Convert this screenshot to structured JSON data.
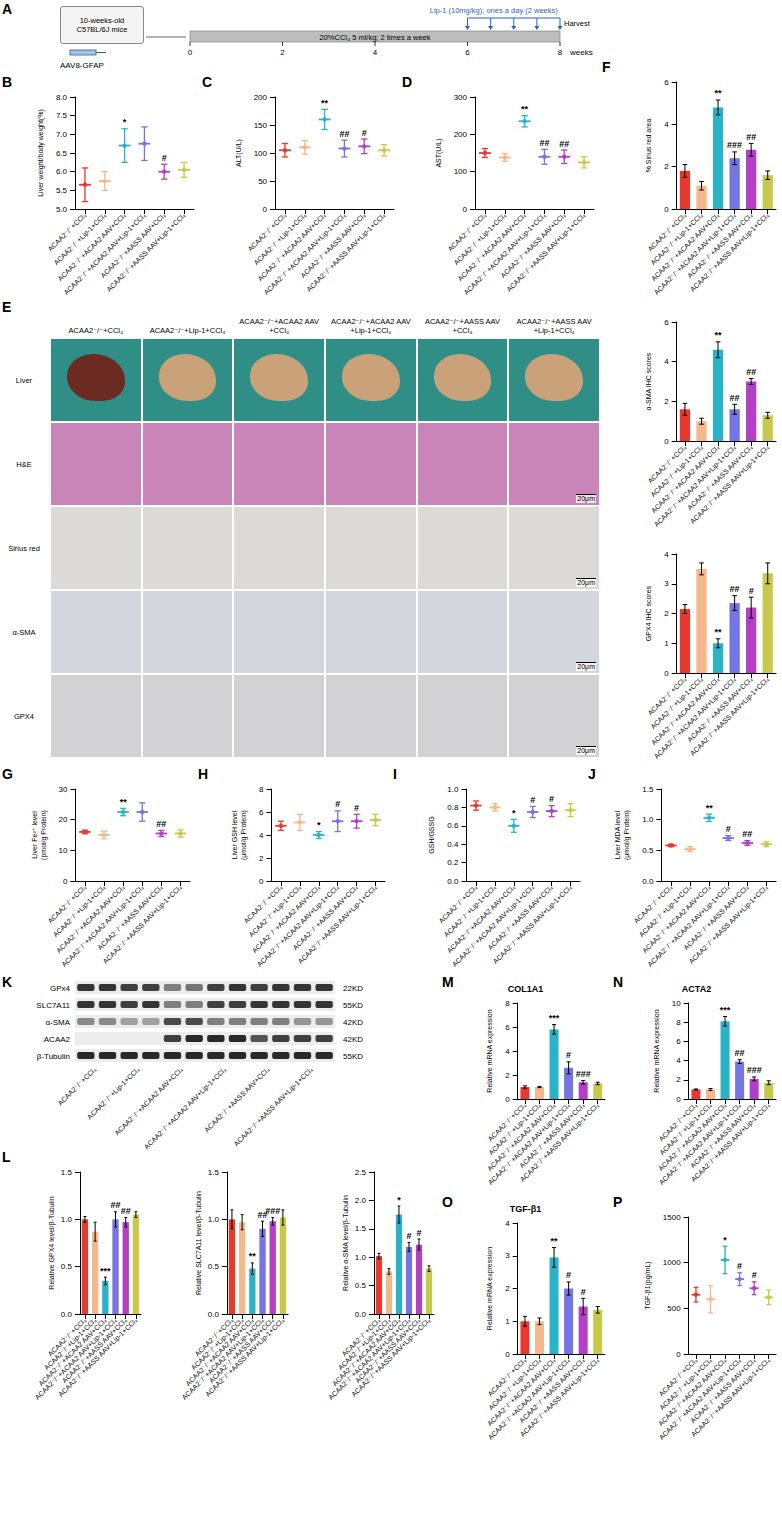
{
  "chart_data": [
    {
      "panel": "B",
      "type": "dotplot",
      "y_label": "Liver weight/body weight(%)",
      "categories": [
        "ACAA2⁻/⁻+CCl₄",
        "ACAA2⁻/⁻+Lip-1+CCl₄",
        "ACAA2⁻/⁻+ACAA2 AAV+CCl₄",
        "ACAA2⁻/⁻+ACAA2 AAV+Lip-1+CCl₄",
        "ACAA2⁻/⁻+AASS AAV+CCl₄",
        "ACAA2⁻/⁻+AASS AAV+Lip-1+CCl₄"
      ],
      "colors": [
        "#e8392f",
        "#f5b88a",
        "#2ab3c6",
        "#7474e2",
        "#b23fc5",
        "#c8c84a"
      ],
      "values": [
        5.65,
        5.75,
        6.7,
        6.75,
        6.0,
        6.05
      ],
      "errors": [
        0.45,
        0.25,
        0.45,
        0.45,
        0.2,
        0.2
      ],
      "annotations": [
        null,
        null,
        "*",
        null,
        "#",
        null
      ],
      "ylim": [
        5,
        8
      ],
      "yticks": [
        {
          "value": 5,
          "label": "5.0"
        },
        5.5,
        {
          "value": 6,
          "label": "6.0"
        },
        6.5,
        {
          "value": 7,
          "label": "7.0"
        },
        7.5,
        {
          "value": 8,
          "label": "8.0"
        }
      ]
    },
    {
      "panel": "C",
      "type": "dotplot",
      "y_label": "ALT(U/L)",
      "categories": [
        "ACAA2⁻/⁻+CCl₄",
        "ACAA2⁻/⁻+Lip-1+CCl₄",
        "ACAA2⁻/⁻+ACAA2 AAV+CCl₄",
        "ACAA2⁻/⁻+ACAA2 AAV+Lip-1+CCl₄",
        "ACAA2⁻/⁻+AASS AAV+CCl₄",
        "ACAA2⁻/⁻+AASS AAV+Lip-1+CCl₄"
      ],
      "colors": [
        "#e8392f",
        "#f5b88a",
        "#2ab3c6",
        "#7474e2",
        "#b23fc5",
        "#c8c84a"
      ],
      "values": [
        105,
        110,
        160,
        108,
        112,
        105
      ],
      "errors": [
        12,
        12,
        18,
        15,
        13,
        10
      ],
      "annotations": [
        null,
        null,
        "**",
        "##",
        "#",
        null
      ],
      "ylim": [
        0,
        200
      ],
      "yticks": [
        0,
        50,
        100,
        150,
        200
      ]
    },
    {
      "panel": "D",
      "type": "dotplot",
      "y_label": "AST(U/L)",
      "categories": [
        "ACAA2⁻/⁻+CCl₄",
        "ACAA2⁻/⁻+Lip-1+CCl₄",
        "ACAA2⁻/⁻+ACAA2 AAV+CCl₄",
        "ACAA2⁻/⁻+ACAA2 AAV+Lip-1+CCl₄",
        "ACAA2⁻/⁻+AASS AAV+CCl₄",
        "ACAA2⁻/⁻+AASS AAV+Lip-1+CCl₄"
      ],
      "colors": [
        "#e8392f",
        "#f5b88a",
        "#2ab3c6",
        "#7474e2",
        "#b23fc5",
        "#c8c84a"
      ],
      "values": [
        150,
        138,
        235,
        140,
        140,
        125
      ],
      "errors": [
        12,
        10,
        15,
        20,
        18,
        15
      ],
      "annotations": [
        null,
        null,
        "**",
        "##",
        "##",
        null
      ],
      "ylim": [
        0,
        300
      ],
      "yticks": [
        0,
        100,
        200,
        300
      ]
    },
    {
      "panel": "F",
      "type": "bar",
      "y_label": "% Sirius red area",
      "categories": [
        "ACAA2⁻/⁻+CCl₄",
        "ACAA2⁻/⁻+Lip-1+CCl₄",
        "ACAA2⁻/⁻+ACAA2 AAV+CCl₄",
        "ACAA2⁻/⁻+ACAA2 AAV+Lip-1+CCl₄",
        "ACAA2⁻/⁻+AASS AAV+CCl₄",
        "ACAA2⁻/⁻+AASS AAV+Lip-1+CCl₄"
      ],
      "colors": [
        "#e8392f",
        "#f5b88a",
        "#2ab3c6",
        "#7474e2",
        "#b23fc5",
        "#c8c84a"
      ],
      "values": [
        1.8,
        1.1,
        4.8,
        2.4,
        2.8,
        1.6
      ],
      "errors": [
        0.3,
        0.2,
        0.35,
        0.3,
        0.3,
        0.2
      ],
      "annotations": [
        null,
        null,
        "**",
        "###",
        "##",
        null
      ],
      "ylim": [
        0,
        6
      ],
      "yticks": [
        0,
        2,
        4,
        6
      ]
    },
    {
      "type": "bar",
      "y_label": "α-SMA IHC scores",
      "categories": [
        "ACAA2⁻/⁻+CCl₄",
        "ACAA2⁻/⁻+Lip-1+CCl₄",
        "ACAA2⁻/⁻+ACAA2 AAV+CCl₄",
        "ACAA2⁻/⁻+ACAA2 AAV+Lip-1+CCl₄",
        "ACAA2⁻/⁻+AASS AAV+CCl₄",
        "ACAA2⁻/⁻+AASS AAV+Lip-1+CCl₄"
      ],
      "colors": [
        "#e8392f",
        "#f5b88a",
        "#2ab3c6",
        "#7474e2",
        "#b23fc5",
        "#c8c84a"
      ],
      "values": [
        1.6,
        1.0,
        4.6,
        1.6,
        3.0,
        1.3
      ],
      "errors": [
        0.3,
        0.15,
        0.4,
        0.25,
        0.15,
        0.15
      ],
      "annotations": [
        null,
        null,
        "**",
        "##",
        "##",
        null
      ],
      "ylim": [
        0,
        6
      ],
      "yticks": [
        0,
        2,
        4,
        6
      ]
    },
    {
      "type": "bar",
      "y_label": "GPX4 IHC scores",
      "categories": [
        "ACAA2⁻/⁻+CCl₄",
        "ACAA2⁻/⁻+Lip-1+CCl₄",
        "ACAA2⁻/⁻+ACAA2 AAV+CCl₄",
        "ACAA2⁻/⁻+ACAA2 AAV+Lip-1+CCl₄",
        "ACAA2⁻/⁻+AASS AAV+CCl₄",
        "ACAA2⁻/⁻+AASS AAV+Lip-1+CCl₄"
      ],
      "colors": [
        "#e8392f",
        "#f5b88a",
        "#2ab3c6",
        "#7474e2",
        "#b23fc5",
        "#c8c84a"
      ],
      "values": [
        2.15,
        3.5,
        1.0,
        2.35,
        2.2,
        3.35
      ],
      "errors": [
        0.15,
        0.2,
        0.15,
        0.25,
        0.35,
        0.35
      ],
      "annotations": [
        null,
        null,
        "**",
        "##",
        "#",
        null
      ],
      "ylim": [
        0,
        4
      ],
      "yticks": [
        0,
        1,
        2,
        3,
        4
      ]
    },
    {
      "panel": "G",
      "type": "dotplot",
      "y_label": "Liver Fe²⁺ level (pmol/g Protein)",
      "categories": [
        "ACAA2⁻/⁻+CCl₄",
        "ACAA2⁻/⁻+Lip-1+CCl₄",
        "ACAA2⁻/⁻+ACAA2 AAV+CCl₄",
        "ACAA2⁻/⁻+ACAA2 AAV+Lip-1+CCl₄",
        "ACAA2⁻/⁻+AASS AAV+CCl₄",
        "ACAA2⁻/⁻+AASS AAV+Lip-1+CCl₄"
      ],
      "colors": [
        "#e8392f",
        "#f5b88a",
        "#2ab3c6",
        "#7474e2",
        "#b23fc5",
        "#c8c84a"
      ],
      "values": [
        16,
        15,
        22.5,
        22.5,
        15.5,
        15.5
      ],
      "errors": [
        0.6,
        1.2,
        1.2,
        3,
        1,
        1.2
      ],
      "annotations": [
        null,
        null,
        "**",
        null,
        "##",
        null
      ],
      "ylim": [
        0,
        30
      ],
      "yticks": [
        0,
        10,
        20,
        30
      ]
    },
    {
      "panel": "H",
      "type": "dotplot",
      "y_label": "Liver GSH level (μmol/g Protein)",
      "categories": [
        "ACAA2⁻/⁻+CCl₄",
        "ACAA2⁻/⁻+Lip-1+CCl₄",
        "ACAA2⁻/⁻+ACAA2 AAV+CCl₄",
        "ACAA2⁻/⁻+ACAA2 AAV+Lip-1+CCl₄",
        "ACAA2⁻/⁻+AASS AAV+CCl₄",
        "ACAA2⁻/⁻+AASS AAV+Lip-1+CCl₄"
      ],
      "colors": [
        "#e8392f",
        "#f5b88a",
        "#2ab3c6",
        "#7474e2",
        "#b23fc5",
        "#c8c84a"
      ],
      "values": [
        4.8,
        5.1,
        4.0,
        5.2,
        5.2,
        5.3
      ],
      "errors": [
        0.4,
        0.7,
        0.3,
        0.9,
        0.6,
        0.5
      ],
      "annotations": [
        null,
        null,
        "*",
        "#",
        "#",
        null
      ],
      "ylim": [
        0,
        8
      ],
      "yticks": [
        0,
        2,
        4,
        6,
        8
      ]
    },
    {
      "panel": "I",
      "type": "dotplot",
      "y_label": "GSH/GSSG",
      "categories": [
        "ACAA2⁻/⁻+CCl₄",
        "ACAA2⁻/⁻+Lip-1+CCl₄",
        "ACAA2⁻/⁻+ACAA2 AAV+CCl₄",
        "ACAA2⁻/⁻+ACAA2 AAV+Lip-1+CCl₄",
        "ACAA2⁻/⁻+AASS AAV+CCl₄",
        "ACAA2⁻/⁻+AASS AAV+Lip-1+CCl₄"
      ],
      "colors": [
        "#e8392f",
        "#f5b88a",
        "#2ab3c6",
        "#7474e2",
        "#b23fc5",
        "#c8c84a"
      ],
      "values": [
        0.82,
        0.8,
        0.6,
        0.75,
        0.76,
        0.77
      ],
      "errors": [
        0.05,
        0.04,
        0.07,
        0.06,
        0.06,
        0.07
      ],
      "annotations": [
        null,
        null,
        "*",
        "#",
        "#",
        null
      ],
      "ylim": [
        0,
        1
      ],
      "yticks": [
        {
          "value": 0,
          "label": "0.0"
        },
        0.2,
        0.4,
        0.6,
        0.8,
        {
          "value": 1,
          "label": "1.0"
        }
      ]
    },
    {
      "panel": "J",
      "type": "dotplot",
      "y_label": "Liver MDA level (μmol/g Protein)",
      "categories": [
        "ACAA2⁻/⁻+CCl₄",
        "ACAA2⁻/⁻+Lip-1+CCl₄",
        "ACAA2⁻/⁻+ACAA2 AAV+CCl₄",
        "ACAA2⁻/⁻+ACAA2 AAV+Lip-1+CCl₄",
        "ACAA2⁻/⁻+AASS AAV+CCl₄",
        "ACAA2⁻/⁻+AASS AAV+Lip-1+CCl₄"
      ],
      "colors": [
        "#e8392f",
        "#f5b88a",
        "#2ab3c6",
        "#7474e2",
        "#b23fc5",
        "#c8c84a"
      ],
      "values": [
        0.58,
        0.52,
        1.03,
        0.7,
        0.62,
        0.6
      ],
      "errors": [
        0.02,
        0.04,
        0.06,
        0.04,
        0.04,
        0.04
      ],
      "annotations": [
        null,
        null,
        "**",
        "#",
        "##",
        null
      ],
      "ylim": [
        0,
        1.5
      ],
      "yticks": [
        {
          "value": 0,
          "label": "0.0"
        },
        0.5,
        {
          "value": 1,
          "label": "1.0"
        },
        1.5
      ]
    },
    {
      "panel": "L",
      "type": "bar",
      "y_label": "Relative GPX4 level/β-Tubulin",
      "categories": [
        "ACAA2⁻/⁻+CCl₄",
        "ACAA2⁻/⁻+Lip-1+CCl₄",
        "ACAA2⁻/⁻+ACAA2 AAV+CCl₄",
        "ACAA2⁻/⁻+ACAA2 AAV+Lip-1+CCl₄",
        "ACAA2⁻/⁻+AASS AAV+CCl₄",
        "ACAA2⁻/⁻+AASS AAV+Lip-1+CCl₄"
      ],
      "colors": [
        "#e8392f",
        "#f5b88a",
        "#2ab3c6",
        "#7474e2",
        "#b23fc5",
        "#c8c84a"
      ],
      "values": [
        1.0,
        0.87,
        0.35,
        1.0,
        0.97,
        1.05
      ],
      "errors": [
        0.03,
        0.1,
        0.04,
        0.08,
        0.05,
        0.03
      ],
      "annotations": [
        null,
        null,
        "***",
        "##",
        "##",
        null
      ],
      "ylim": [
        0,
        1.5
      ],
      "yticks": [
        {
          "value": 0,
          "label": "0.0"
        },
        0.5,
        {
          "value": 1,
          "label": "1.0"
        },
        1.5
      ]
    },
    {
      "type": "bar",
      "y_label": "Relative SLC7A11 level/β-Tubulin",
      "categories": [
        "ACAA2⁻/⁻+CCl₄",
        "ACAA2⁻/⁻+Lip-1+CCl₄",
        "ACAA2⁻/⁻+ACAA2 AAV+CCl₄",
        "ACAA2⁻/⁻+ACAA2 AAV+Lip-1+CCl₄",
        "ACAA2⁻/⁻+AASS AAV+CCl₄",
        "ACAA2⁻/⁻+AASS AAV+Lip-1+CCl₄"
      ],
      "colors": [
        "#e8392f",
        "#f5b88a",
        "#2ab3c6",
        "#7474e2",
        "#b23fc5",
        "#c8c84a"
      ],
      "values": [
        1.0,
        0.97,
        0.48,
        0.9,
        0.98,
        1.02
      ],
      "errors": [
        0.1,
        0.08,
        0.06,
        0.08,
        0.04,
        0.08
      ],
      "annotations": [
        null,
        null,
        "**",
        "##",
        "###",
        null
      ],
      "ylim": [
        0,
        1.5
      ],
      "yticks": [
        {
          "value": 0,
          "label": "0.0"
        },
        0.5,
        {
          "value": 1,
          "label": "1.0"
        },
        1.5
      ]
    },
    {
      "type": "bar",
      "y_label": "Relative α-SMA level/β-Tubulin",
      "categories": [
        "ACAA2⁻/⁻+CCl₄",
        "ACAA2⁻/⁻+Lip-1+CCl₄",
        "ACAA2⁻/⁻+ACAA2 AAV+CCl₄",
        "ACAA2⁻/⁻+ACAA2 AAV+Lip-1+CCl₄",
        "ACAA2⁻/⁻+AASS AAV+CCl₄",
        "ACAA2⁻/⁻+AASS AAV+Lip-1+CCl₄"
      ],
      "colors": [
        "#e8392f",
        "#f5b88a",
        "#2ab3c6",
        "#7474e2",
        "#b23fc5",
        "#c8c84a"
      ],
      "values": [
        1.02,
        0.75,
        1.75,
        1.18,
        1.22,
        0.8
      ],
      "errors": [
        0.05,
        0.05,
        0.15,
        0.08,
        0.1,
        0.05
      ],
      "annotations": [
        null,
        null,
        "*",
        "#",
        "#",
        null
      ],
      "ylim": [
        0,
        2.5
      ],
      "yticks": [
        {
          "value": 0,
          "label": "0.0"
        },
        0.5,
        {
          "value": 1,
          "label": "1.0"
        },
        1.5,
        {
          "value": 2,
          "label": "2.0"
        },
        2.5
      ]
    },
    {
      "panel": "M",
      "type": "bar",
      "title": "COL1A1",
      "y_label": "Relative mRNA expression",
      "categories": [
        "ACAA2⁻/⁻+CCl₄",
        "ACAA2⁻/⁻+Lip-1+CCl₄",
        "ACAA2⁻/⁻+ACAA2 AAV+CCl₄",
        "ACAA2⁻/⁻+ACAA2 AAV+Lip-1+CCl₄",
        "ACAA2⁻/⁻+AASS AAV+CCl₄",
        "ACAA2⁻/⁻+AASS AAV+Lip-1+CCl₄"
      ],
      "colors": [
        "#e8392f",
        "#f5b88a",
        "#2ab3c6",
        "#7474e2",
        "#b23fc5",
        "#c8c84a"
      ],
      "values": [
        1.0,
        1.0,
        5.8,
        2.6,
        1.4,
        1.3
      ],
      "errors": [
        0.1,
        0.05,
        0.4,
        0.5,
        0.15,
        0.1
      ],
      "annotations": [
        null,
        null,
        "***",
        "#",
        "###",
        null
      ],
      "ylim": [
        0,
        8
      ],
      "yticks": [
        0,
        2,
        4,
        6,
        8
      ]
    },
    {
      "panel": "N",
      "type": "bar",
      "title": "ACTA2",
      "y_label": "Relative mRNA expression",
      "categories": [
        "ACAA2⁻/⁻+CCl₄",
        "ACAA2⁻/⁻+Lip-1+CCl₄",
        "ACAA2⁻/⁻+ACAA2 AAV+CCl₄",
        "ACAA2⁻/⁻+ACAA2 AAV+Lip-1+CCl₄",
        "ACAA2⁻/⁻+AASS AAV+CCl₄",
        "ACAA2⁻/⁻+AASS AAV+Lip-1+CCl₄"
      ],
      "colors": [
        "#e8392f",
        "#f5b88a",
        "#2ab3c6",
        "#7474e2",
        "#b23fc5",
        "#c8c84a"
      ],
      "values": [
        1.0,
        1.0,
        8.1,
        3.9,
        2.1,
        1.7
      ],
      "errors": [
        0.05,
        0.1,
        0.5,
        0.2,
        0.2,
        0.2
      ],
      "annotations": [
        null,
        null,
        "***",
        "##",
        "###",
        null
      ],
      "ylim": [
        0,
        10
      ],
      "yticks": [
        0,
        2,
        4,
        6,
        8,
        10
      ]
    },
    {
      "panel": "O",
      "type": "bar",
      "title": "TGF-β1",
      "y_label": "Relative mRNA expression",
      "categories": [
        "ACAA2⁻/⁻+CCl₄",
        "ACAA2⁻/⁻+Lip-1+CCl₄",
        "ACAA2⁻/⁻+ACAA2 AAV+CCl₄",
        "ACAA2⁻/⁻+ACAA2 AAV+Lip-1+CCl₄",
        "ACAA2⁻/⁻+AASS AAV+CCl₄",
        "ACAA2⁻/⁻+AASS AAV+Lip-1+CCl₄"
      ],
      "colors": [
        "#e8392f",
        "#f5b88a",
        "#2ab3c6",
        "#7474e2",
        "#b23fc5",
        "#c8c84a"
      ],
      "values": [
        1.0,
        1.0,
        2.95,
        2.0,
        1.45,
        1.35
      ],
      "errors": [
        0.15,
        0.1,
        0.3,
        0.2,
        0.25,
        0.1
      ],
      "annotations": [
        null,
        null,
        "**",
        "#",
        "#",
        null
      ],
      "ylim": [
        0,
        4
      ],
      "yticks": [
        0,
        1,
        2,
        3,
        4
      ]
    },
    {
      "panel": "P",
      "type": "dotplot",
      "y_label": "TGF-β1(pg/mL)",
      "categories": [
        "ACAA2⁻/⁻+CCl₄",
        "ACAA2⁻/⁻+Lip-1+CCl₄",
        "ACAA2⁻/⁻+ACAA2 AAV+CCl₄",
        "ACAA2⁻/⁻+ACAA2 AAV+Lip-1+CCl₄",
        "ACAA2⁻/⁻+AASS AAV+CCl₄",
        "ACAA2⁻/⁻+AASS AAV+Lip-1+CCl₄"
      ],
      "colors": [
        "#e8392f",
        "#f5b88a",
        "#2ab3c6",
        "#7474e2",
        "#b23fc5",
        "#c8c84a"
      ],
      "values": [
        650,
        600,
        1030,
        820,
        720,
        620
      ],
      "errors": [
        80,
        150,
        150,
        70,
        70,
        80
      ],
      "annotations": [
        null,
        null,
        "*",
        "#",
        "#",
        null
      ],
      "ylim": [
        0,
        1500
      ],
      "yticks": [
        0,
        500,
        1000,
        1500
      ]
    }
  ],
  "schematic": {
    "panel": "A",
    "mice": "10-weeks-old C57BL/6J mice",
    "treatment": "Lip-1 (10mg/kg); ones a day (2 weeks)",
    "harvest": "Harvest",
    "ccl4": "20%CCl₄ 5 ml/kg; 2 times a week",
    "virus": "AAV8-GFAP",
    "axis_label": "weeks",
    "xlim": [
      0,
      8
    ],
    "xticks": [
      0,
      2,
      4,
      6,
      8
    ],
    "lip1_start": 6,
    "arrows": [
      6,
      6.5,
      7,
      7.5,
      8
    ]
  },
  "image_panel": {
    "panel": "E",
    "columns": [
      "ACAA2⁻/⁻+CCl₄",
      "ACAA2⁻/⁻+Lip-1+CCl₄",
      "ACAA2⁻/⁻+ACAA2 AAV +CCl₄",
      "ACAA2⁻/⁻+ACAA2 AAV +Lip-1+CCl₄",
      "ACAA2⁻/⁻+AASS AAV +CCl₄",
      "ACAA2⁻/⁻+AASS AAV +Lip-1+CCl₄"
    ],
    "rows": [
      "Liver",
      "H&E",
      "Sirius red",
      "α-SMA",
      "GPX4"
    ],
    "scale_bar": "20μm"
  },
  "blot": {
    "panel": "K",
    "categories": [
      "ACAA2⁻/⁻+CCl₄",
      "ACAA2⁻/⁻+Lip-1+CCl₄",
      "ACAA2⁻/⁻+ACAA2 AAV+CCl₄",
      "ACAA2⁻/⁻+ACAA2 AAV+Lip-1+CCl₄",
      "ACAA2⁻/⁻+AASS AAV+CCl₄",
      "ACAA2⁻/⁻+AASS AAV+Lip-1+CCl₄"
    ],
    "bands": [
      {
        "name": "GPx4",
        "size": "22KD",
        "intensity": [
          0.85,
          0.85,
          0.8,
          0.8,
          0.5,
          0.55,
          0.8,
          0.85,
          0.8,
          0.85,
          0.85,
          0.85
        ]
      },
      {
        "name": "SLC7A11",
        "size": "55KD",
        "intensity": [
          0.85,
          0.85,
          0.8,
          0.85,
          0.5,
          0.5,
          0.8,
          0.8,
          0.85,
          0.85,
          0.85,
          0.85
        ]
      },
      {
        "name": "α-SMA",
        "size": "42KD",
        "intensity": [
          0.45,
          0.45,
          0.35,
          0.35,
          0.75,
          0.75,
          0.5,
          0.5,
          0.5,
          0.5,
          0.4,
          0.4
        ]
      },
      {
        "name": "ACAA2",
        "size": "42KD",
        "intensity": [
          0,
          0,
          0,
          0,
          0.8,
          0.9,
          0.9,
          0.9,
          0.7,
          0.8,
          0.8,
          0.8
        ]
      },
      {
        "name": "β-Tubulin",
        "size": "55KD",
        "intensity": [
          0.9,
          0.9,
          0.9,
          0.9,
          0.9,
          0.9,
          0.9,
          0.9,
          0.9,
          0.9,
          0.9,
          0.9
        ]
      }
    ]
  }
}
